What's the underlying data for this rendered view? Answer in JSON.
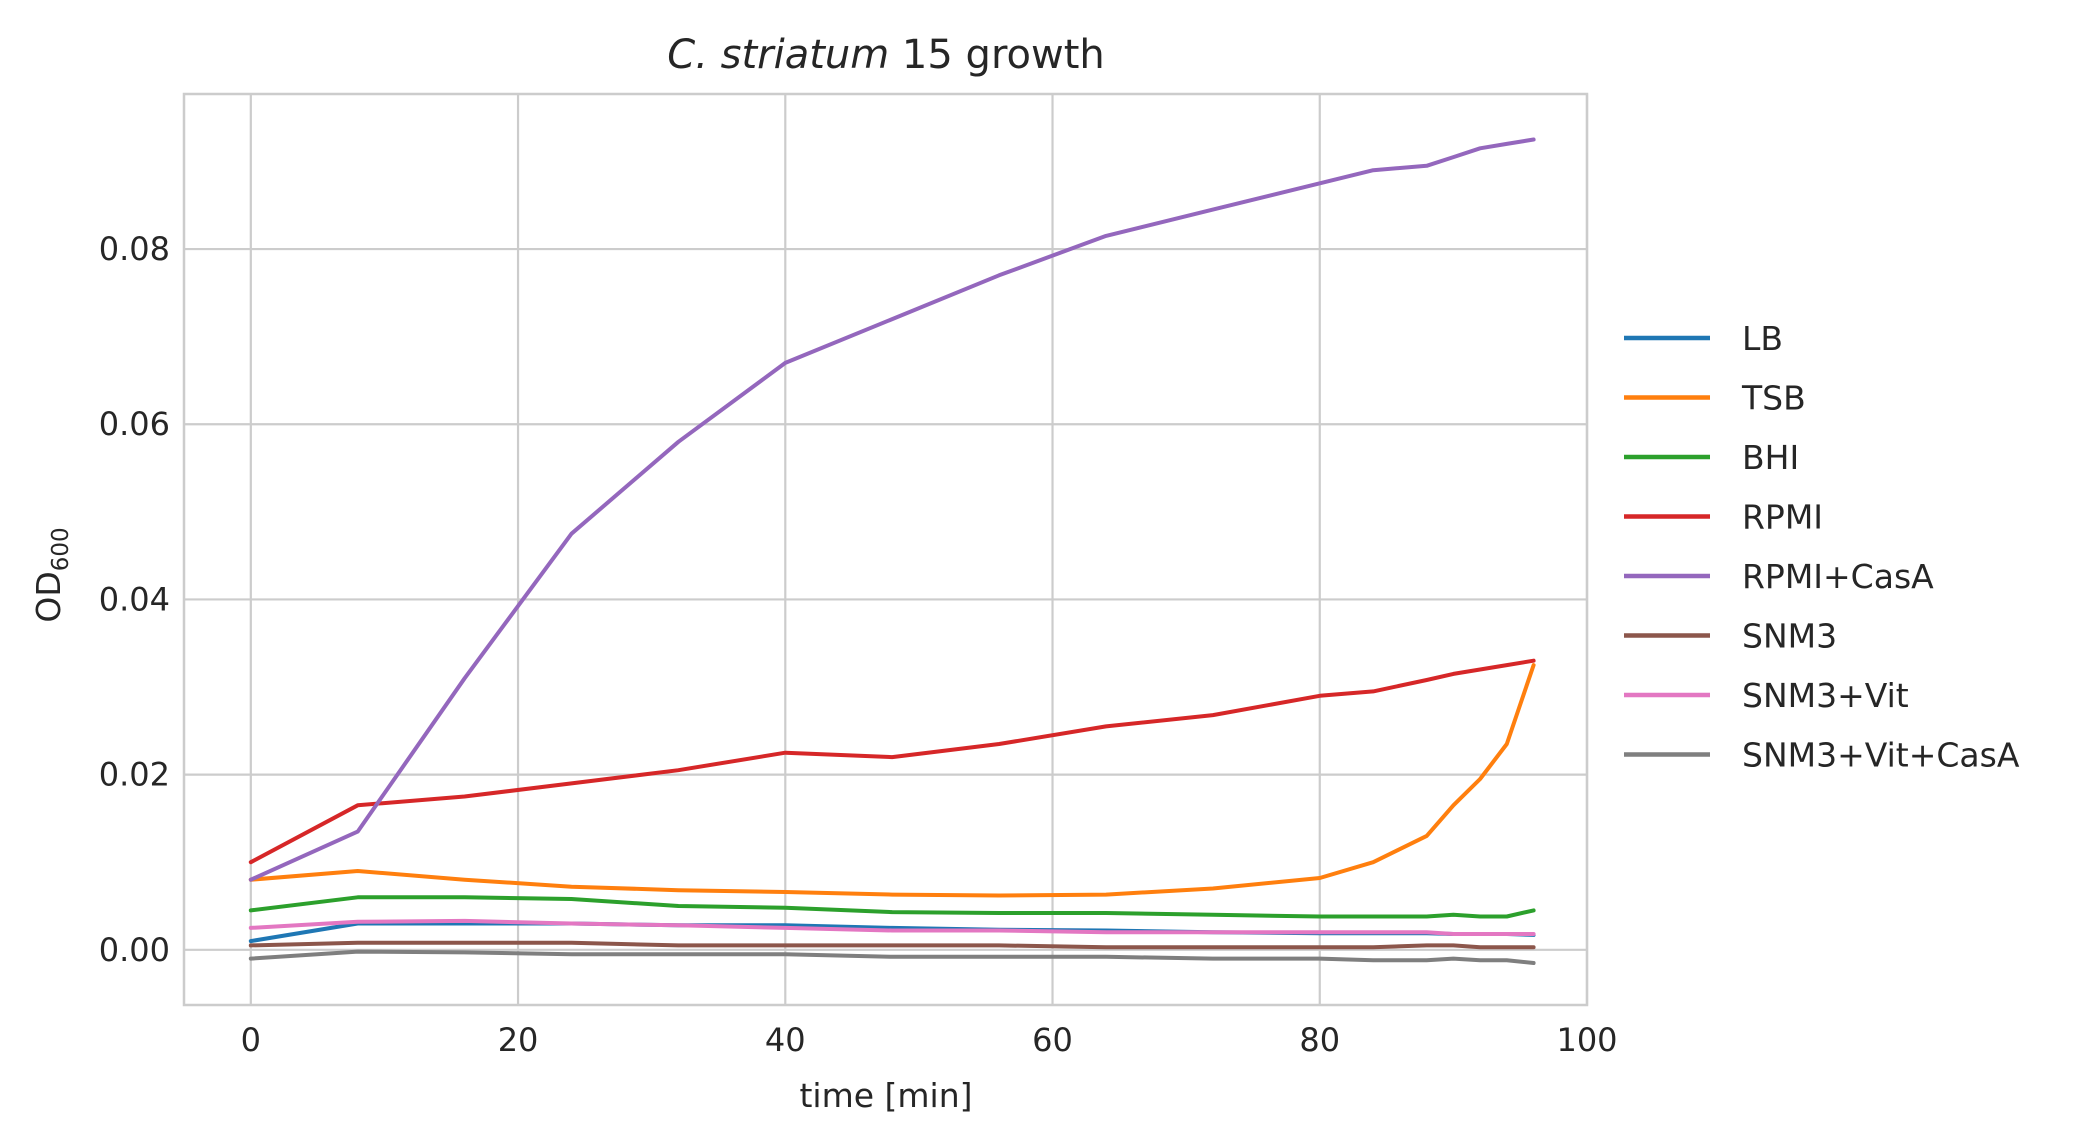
{
  "chart_data": {
    "type": "line",
    "title_italic": "C. striatum",
    "title_rest": " 15 growth",
    "xlabel": "time [min]",
    "ylabel_main": "OD",
    "ylabel_sub": "600",
    "xlim": [
      -5,
      100
    ],
    "ylim": [
      -0.0063,
      0.0977
    ],
    "xticks": [
      0,
      20,
      40,
      60,
      80,
      100
    ],
    "xtick_labels": [
      "0",
      "20",
      "40",
      "60",
      "80",
      "100"
    ],
    "yticks": [
      0.0,
      0.02,
      0.04,
      0.06,
      0.08
    ],
    "ytick_labels": [
      "0.00",
      "0.02",
      "0.04",
      "0.06",
      "0.08"
    ],
    "grid": true,
    "legend_position": "right-outside",
    "x": [
      0,
      8,
      16,
      24,
      32,
      40,
      48,
      56,
      64,
      72,
      80,
      84,
      88,
      90,
      92,
      94,
      96
    ],
    "series": [
      {
        "name": "LB",
        "color": "#1f77b4",
        "values": [
          0.001,
          0.003,
          0.003,
          0.003,
          0.0028,
          0.0028,
          0.0025,
          0.0023,
          0.0022,
          0.002,
          0.0019,
          0.0019,
          0.0019,
          0.0018,
          0.0018,
          0.0018,
          0.0017
        ]
      },
      {
        "name": "TSB",
        "color": "#ff7f0e",
        "values": [
          0.008,
          0.009,
          0.008,
          0.0072,
          0.0068,
          0.0066,
          0.0063,
          0.0062,
          0.0063,
          0.007,
          0.0082,
          0.01,
          0.013,
          0.0165,
          0.0195,
          0.0235,
          0.0325
        ]
      },
      {
        "name": "BHI",
        "color": "#2ca02c",
        "values": [
          0.0045,
          0.006,
          0.006,
          0.0058,
          0.005,
          0.0048,
          0.0043,
          0.0042,
          0.0042,
          0.004,
          0.0038,
          0.0038,
          0.0038,
          0.004,
          0.0038,
          0.0038,
          0.0045
        ]
      },
      {
        "name": "RPMI",
        "color": "#d62728",
        "values": [
          0.01,
          0.0165,
          0.0175,
          0.019,
          0.0205,
          0.0225,
          0.022,
          0.0235,
          0.0255,
          0.0268,
          0.029,
          0.0295,
          0.0308,
          0.0315,
          0.032,
          0.0325,
          0.033
        ]
      },
      {
        "name": "RPMI+CasA",
        "color": "#9467bd",
        "values": [
          0.008,
          0.0135,
          0.031,
          0.0475,
          0.058,
          0.067,
          0.072,
          0.077,
          0.0815,
          0.0845,
          0.0875,
          0.089,
          0.0895,
          0.0905,
          0.0915,
          0.092,
          0.0925
        ]
      },
      {
        "name": "SNM3",
        "color": "#8c564b",
        "values": [
          0.0005,
          0.0008,
          0.0008,
          0.0008,
          0.0005,
          0.0005,
          0.0005,
          0.0005,
          0.0003,
          0.0003,
          0.0003,
          0.0003,
          0.0005,
          0.0005,
          0.0003,
          0.0003,
          0.0003
        ]
      },
      {
        "name": "SNM3+Vit",
        "color": "#e377c2",
        "values": [
          0.0025,
          0.0032,
          0.0033,
          0.003,
          0.0028,
          0.0025,
          0.0022,
          0.0022,
          0.002,
          0.002,
          0.002,
          0.002,
          0.002,
          0.0018,
          0.0018,
          0.0018,
          0.0018
        ]
      },
      {
        "name": "SNM3+Vit+CasA",
        "color": "#7f7f7f",
        "values": [
          -0.001,
          -0.0002,
          -0.0003,
          -0.0005,
          -0.0005,
          -0.0005,
          -0.0008,
          -0.0008,
          -0.0008,
          -0.001,
          -0.001,
          -0.0012,
          -0.0012,
          -0.001,
          -0.0012,
          -0.0012,
          -0.0015
        ]
      }
    ]
  }
}
